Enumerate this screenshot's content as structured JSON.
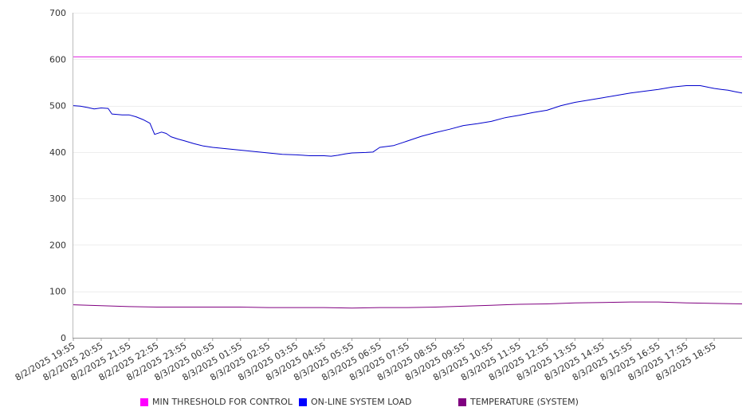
{
  "chart_data": {
    "type": "line",
    "ylim": [
      0,
      700
    ],
    "yticks": [
      0,
      100,
      200,
      300,
      400,
      500,
      600,
      700
    ],
    "x_range": [
      "8/2/2025 19:55",
      "8/3/2025 19:55"
    ],
    "xtick_labels": [
      "8/2/2025 19:55",
      "8/2/2025 20:55",
      "8/2/2025 21:55",
      "8/2/2025 22:55",
      "8/2/2025 23:55",
      "8/3/2025 00:55",
      "8/3/2025 01:55",
      "8/3/2025 02:55",
      "8/3/2025 03:55",
      "8/3/2025 04:55",
      "8/3/2025 05:55",
      "8/3/2025 06:55",
      "8/3/2025 07:55",
      "8/3/2025 08:55",
      "8/3/2025 09:55",
      "8/3/2025 10:55",
      "8/3/2025 11:55",
      "8/3/2025 12:55",
      "8/3/2025 13:55",
      "8/3/2025 14:55",
      "8/3/2025 15:55",
      "8/3/2025 16:55",
      "8/3/2025 17:55",
      "8/3/2025 18:55"
    ],
    "grid": true,
    "legend_position": "bottom",
    "series": [
      {
        "name": "MIN THRESHOLD FOR CONTROL",
        "color": "#e020e0",
        "swatch_color": "#ff00ff",
        "points": [
          [
            "8/2/2025 19:55",
            605
          ],
          [
            "8/3/2025 19:55",
            605
          ]
        ]
      },
      {
        "name": "ON-LINE SYSTEM LOAD",
        "color": "#0000cc",
        "swatch_color": "#0000ff",
        "points": [
          [
            "8/2/2025 19:55",
            500
          ],
          [
            "8/2/2025 20:10",
            499
          ],
          [
            "8/2/2025 20:25",
            496
          ],
          [
            "8/2/2025 20:40",
            493
          ],
          [
            "8/2/2025 20:55",
            495
          ],
          [
            "8/2/2025 21:10",
            494
          ],
          [
            "8/2/2025 21:18",
            482
          ],
          [
            "8/2/2025 21:40",
            480
          ],
          [
            "8/2/2025 21:55",
            480
          ],
          [
            "8/2/2025 22:10",
            476
          ],
          [
            "8/2/2025 22:25",
            470
          ],
          [
            "8/2/2025 22:40",
            462
          ],
          [
            "8/2/2025 22:50",
            438
          ],
          [
            "8/2/2025 23:05",
            443
          ],
          [
            "8/2/2025 23:15",
            440
          ],
          [
            "8/2/2025 23:25",
            433
          ],
          [
            "8/2/2025 23:40",
            428
          ],
          [
            "8/2/2025 23:55",
            424
          ],
          [
            "8/3/2025 00:15",
            418
          ],
          [
            "8/3/2025 00:35",
            413
          ],
          [
            "8/3/2025 00:55",
            410
          ],
          [
            "8/3/2025 01:25",
            407
          ],
          [
            "8/3/2025 01:55",
            404
          ],
          [
            "8/3/2025 02:25",
            401
          ],
          [
            "8/3/2025 02:55",
            398
          ],
          [
            "8/3/2025 03:25",
            395
          ],
          [
            "8/3/2025 03:55",
            394
          ],
          [
            "8/3/2025 04:25",
            392
          ],
          [
            "8/3/2025 04:55",
            392
          ],
          [
            "8/3/2025 05:10",
            391
          ],
          [
            "8/3/2025 05:25",
            393
          ],
          [
            "8/3/2025 05:40",
            396
          ],
          [
            "8/3/2025 05:55",
            398
          ],
          [
            "8/3/2025 06:25",
            399
          ],
          [
            "8/3/2025 06:40",
            400
          ],
          [
            "8/3/2025 06:55",
            410
          ],
          [
            "8/3/2025 07:25",
            414
          ],
          [
            "8/3/2025 07:55",
            424
          ],
          [
            "8/3/2025 08:25",
            434
          ],
          [
            "8/3/2025 08:55",
            442
          ],
          [
            "8/3/2025 09:25",
            449
          ],
          [
            "8/3/2025 09:55",
            457
          ],
          [
            "8/3/2025 10:25",
            461
          ],
          [
            "8/3/2025 10:55",
            466
          ],
          [
            "8/3/2025 11:25",
            474
          ],
          [
            "8/3/2025 11:55",
            479
          ],
          [
            "8/3/2025 12:25",
            485
          ],
          [
            "8/3/2025 12:55",
            490
          ],
          [
            "8/3/2025 13:25",
            500
          ],
          [
            "8/3/2025 13:55",
            507
          ],
          [
            "8/3/2025 14:25",
            512
          ],
          [
            "8/3/2025 14:55",
            517
          ],
          [
            "8/3/2025 15:25",
            522
          ],
          [
            "8/3/2025 15:55",
            527
          ],
          [
            "8/3/2025 16:25",
            531
          ],
          [
            "8/3/2025 16:55",
            535
          ],
          [
            "8/3/2025 17:25",
            540
          ],
          [
            "8/3/2025 17:55",
            543
          ],
          [
            "8/3/2025 18:25",
            543
          ],
          [
            "8/3/2025 18:40",
            540
          ],
          [
            "8/3/2025 18:55",
            537
          ],
          [
            "8/3/2025 19:10",
            535
          ],
          [
            "8/3/2025 19:25",
            533
          ],
          [
            "8/3/2025 19:40",
            530
          ],
          [
            "8/3/2025 19:55",
            527
          ]
        ]
      },
      {
        "name": "TEMPERATURE (SYSTEM)",
        "color": "#800080",
        "swatch_color": "#800080",
        "points": [
          [
            "8/2/2025 19:55",
            71
          ],
          [
            "8/2/2025 20:55",
            69
          ],
          [
            "8/2/2025 21:55",
            67
          ],
          [
            "8/2/2025 22:55",
            66
          ],
          [
            "8/2/2025 23:55",
            66
          ],
          [
            "8/3/2025 00:55",
            66
          ],
          [
            "8/3/2025 01:55",
            66
          ],
          [
            "8/3/2025 02:55",
            65
          ],
          [
            "8/3/2025 03:55",
            65
          ],
          [
            "8/3/2025 04:55",
            65
          ],
          [
            "8/3/2025 05:55",
            64
          ],
          [
            "8/3/2025 06:55",
            65
          ],
          [
            "8/3/2025 07:55",
            65
          ],
          [
            "8/3/2025 08:55",
            66
          ],
          [
            "8/3/2025 09:55",
            68
          ],
          [
            "8/3/2025 10:55",
            70
          ],
          [
            "8/3/2025 11:55",
            72
          ],
          [
            "8/3/2025 12:55",
            73
          ],
          [
            "8/3/2025 13:55",
            75
          ],
          [
            "8/3/2025 14:55",
            76
          ],
          [
            "8/3/2025 15:55",
            77
          ],
          [
            "8/3/2025 16:55",
            77
          ],
          [
            "8/3/2025 17:55",
            75
          ],
          [
            "8/3/2025 18:55",
            74
          ],
          [
            "8/3/2025 19:55",
            73
          ]
        ]
      }
    ]
  }
}
